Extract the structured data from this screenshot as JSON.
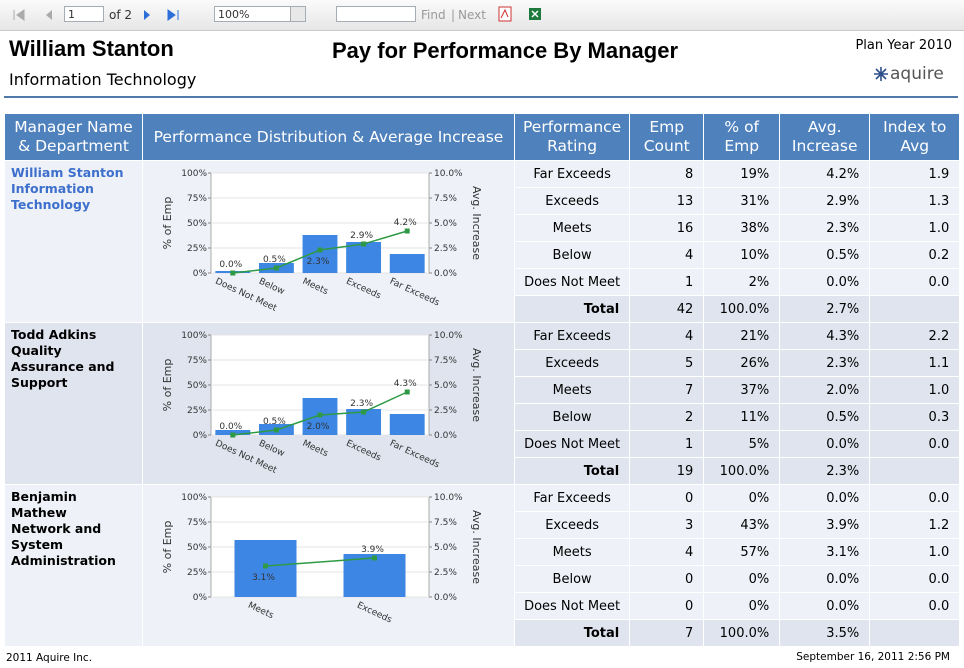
{
  "toolbar": {
    "page": "1",
    "page_of": "of 2",
    "zoom": "100%",
    "find": "Find",
    "next": "Next"
  },
  "header": {
    "name": "William Stanton",
    "department": "Information Technology",
    "title": "Pay for Performance By Manager",
    "plan_year": "Plan Year 2010",
    "logo": "aquire"
  },
  "table": {
    "columns": [
      "Manager Name & Department",
      "Performance Distribution & Average Increase",
      "Performance Rating",
      "Emp Count",
      "% of Emp",
      "Avg. Increase",
      "Index to Avg"
    ],
    "groups": [
      {
        "manager": "William Stanton",
        "department": "Information Technology",
        "rows": [
          [
            "Far Exceeds",
            "8",
            "19%",
            "4.2%",
            "1.9"
          ],
          [
            "Exceeds",
            "13",
            "31%",
            "2.9%",
            "1.3"
          ],
          [
            "Meets",
            "16",
            "38%",
            "2.3%",
            "1.0"
          ],
          [
            "Below",
            "4",
            "10%",
            "0.5%",
            "0.2"
          ],
          [
            "Does Not Meet",
            "1",
            "2%",
            "0.0%",
            "0.0"
          ]
        ],
        "total": [
          "Total",
          "42",
          "100.0%",
          "2.7%"
        ]
      },
      {
        "manager": "Todd Adkins",
        "department": "Quality Assurance and Support",
        "rows": [
          [
            "Far Exceeds",
            "4",
            "21%",
            "4.3%",
            "2.2"
          ],
          [
            "Exceeds",
            "5",
            "26%",
            "2.3%",
            "1.1"
          ],
          [
            "Meets",
            "7",
            "37%",
            "2.0%",
            "1.0"
          ],
          [
            "Below",
            "2",
            "11%",
            "0.5%",
            "0.3"
          ],
          [
            "Does Not Meet",
            "1",
            "5%",
            "0.0%",
            "0.0"
          ]
        ],
        "total": [
          "Total",
          "19",
          "100.0%",
          "2.3%"
        ]
      },
      {
        "manager": "Benjamin Mathew",
        "department": "Network and System Administration",
        "rows": [
          [
            "Far Exceeds",
            "0",
            "0%",
            "0.0%",
            "0.0"
          ],
          [
            "Exceeds",
            "3",
            "43%",
            "3.9%",
            "1.2"
          ],
          [
            "Meets",
            "4",
            "57%",
            "3.1%",
            "1.0"
          ],
          [
            "Below",
            "0",
            "0%",
            "0.0%",
            "0.0"
          ],
          [
            "Does Not Meet",
            "0",
            "0%",
            "0.0%",
            "0.0"
          ]
        ],
        "total": [
          "Total",
          "7",
          "100.0%",
          "3.5%"
        ]
      }
    ]
  },
  "chart_data": [
    {
      "type": "bar",
      "categories": [
        "Does Not Meet",
        "Below",
        "Meets",
        "Exceeds",
        "Far Exceeds"
      ],
      "series": [
        {
          "name": "% of Emp",
          "color": "#3d86e4",
          "values": [
            2,
            10,
            38,
            31,
            19
          ]
        },
        {
          "name": "Avg. Increase",
          "type": "line",
          "axis": "y2",
          "color": "#2e9a46",
          "values": [
            0.0,
            0.5,
            2.3,
            2.9,
            4.2
          ],
          "value_labels": [
            "0.0%",
            "0.5%",
            "2.3%",
            "2.9%",
            "4.2%"
          ]
        }
      ],
      "ylim": [
        0,
        100
      ],
      "yticks": [
        {
          "value": 0,
          "label": "0%"
        },
        {
          "value": 25,
          "label": "25%"
        },
        {
          "value": 50,
          "label": "50%"
        },
        {
          "value": 75,
          "label": "75%"
        },
        {
          "value": 100,
          "label": "100%"
        }
      ],
      "y2lim": [
        0,
        10
      ],
      "y2ticks": [
        {
          "value": 0,
          "label": "0.0%"
        },
        {
          "value": 2.5,
          "label": "2.5%"
        },
        {
          "value": 5,
          "label": "5.0%"
        },
        {
          "value": 7.5,
          "label": "7.5%"
        },
        {
          "value": 10,
          "label": "10.0%"
        }
      ]
    },
    {
      "type": "bar",
      "categories": [
        "Does Not Meet",
        "Below",
        "Meets",
        "Exceeds",
        "Far Exceeds"
      ],
      "series": [
        {
          "name": "% of Emp",
          "color": "#3d86e4",
          "values": [
            5,
            11,
            37,
            26,
            21
          ]
        },
        {
          "name": "Avg. Increase",
          "type": "line",
          "axis": "y2",
          "color": "#2e9a46",
          "values": [
            0.0,
            0.5,
            2.0,
            2.3,
            4.3
          ],
          "value_labels": [
            "0.0%",
            "0.5%",
            "2.0%",
            "2.3%",
            "4.3%"
          ]
        }
      ],
      "ylim": [
        0,
        100
      ],
      "yticks": [
        {
          "value": 0,
          "label": "0%"
        },
        {
          "value": 25,
          "label": "25%"
        },
        {
          "value": 50,
          "label": "50%"
        },
        {
          "value": 75,
          "label": "75%"
        },
        {
          "value": 100,
          "label": "100%"
        }
      ],
      "y2lim": [
        0,
        10
      ],
      "y2ticks": [
        {
          "value": 0,
          "label": "0.0%"
        },
        {
          "value": 2.5,
          "label": "2.5%"
        },
        {
          "value": 5,
          "label": "5.0%"
        },
        {
          "value": 7.5,
          "label": "7.5%"
        },
        {
          "value": 10,
          "label": "10.0%"
        }
      ]
    },
    {
      "type": "bar",
      "categories": [
        "Meets",
        "Exceeds"
      ],
      "series": [
        {
          "name": "% of Emp",
          "color": "#3d86e4",
          "values": [
            57,
            43
          ]
        },
        {
          "name": "Avg. Increase",
          "type": "line",
          "axis": "y2",
          "color": "#2e9a46",
          "values": [
            3.1,
            3.9
          ],
          "value_labels": [
            "3.1%",
            "3.9%"
          ]
        }
      ],
      "ylim": [
        0,
        100
      ],
      "yticks": [
        {
          "value": 0,
          "label": "0%"
        },
        {
          "value": 25,
          "label": "25%"
        },
        {
          "value": 50,
          "label": "50%"
        },
        {
          "value": 75,
          "label": "75%"
        },
        {
          "value": 100,
          "label": "100%"
        }
      ],
      "y2lim": [
        0,
        10
      ],
      "y2ticks": [
        {
          "value": 0,
          "label": "0.0%"
        },
        {
          "value": 2.5,
          "label": "2.5%"
        },
        {
          "value": 5,
          "label": "5.0%"
        },
        {
          "value": 7.5,
          "label": "7.5%"
        },
        {
          "value": 10,
          "label": "10.0%"
        }
      ]
    }
  ],
  "footer": {
    "left": "2011 Aquire Inc.",
    "right": "September 16, 2011 2:56 PM"
  }
}
